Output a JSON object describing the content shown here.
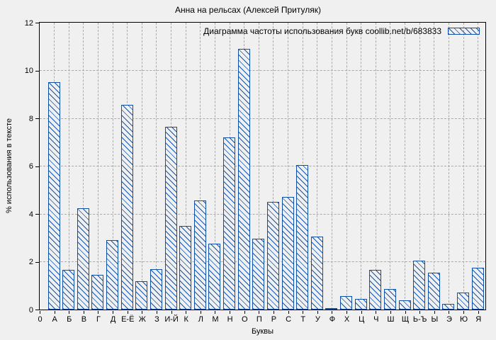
{
  "colors": {
    "bar_edge": "#0f4fa8",
    "bar_hatch": "#1155ad",
    "grid": "#aaaaaa",
    "frame": "#000000",
    "background": "#f0f0f0",
    "text": "#000000"
  },
  "chart_data": {
    "type": "bar",
    "title": "Анна на рельсах (Алексей Притуляк)",
    "legend": "Диаграмма частоты использования букв coollib.net/b/683833",
    "legend_position": "top-right-inside",
    "xlabel": "Буквы",
    "ylabel": "% использования в тексте",
    "ylim": [
      0,
      12
    ],
    "yticks": [
      0,
      2,
      4,
      6,
      8,
      10,
      12
    ],
    "grid": "dashed, vertical at every category and horizontal at every ytick",
    "bar_style": "backslash-hatched, blue edge, no solid fill",
    "categories": [
      "0",
      "А",
      "Б",
      "В",
      "Г",
      "Д",
      "Е-Ё",
      "Ж",
      "З",
      "И-Й",
      "К",
      "Л",
      "М",
      "Н",
      "О",
      "П",
      "Р",
      "С",
      "Т",
      "У",
      "Ф",
      "Х",
      "Ц",
      "Ч",
      "Ш",
      "Щ",
      "Ь-Ъ",
      "Ы",
      "Э",
      "Ю",
      "Я"
    ],
    "values": [
      0,
      9.5,
      1.65,
      4.25,
      1.45,
      2.9,
      8.55,
      1.2,
      1.7,
      7.65,
      3.5,
      4.55,
      2.75,
      7.2,
      10.9,
      2.95,
      4.5,
      4.7,
      6.05,
      3.05,
      0.05,
      0.55,
      0.45,
      1.65,
      0.85,
      0.4,
      2.05,
      1.55,
      0.25,
      0.7,
      1.75
    ]
  }
}
